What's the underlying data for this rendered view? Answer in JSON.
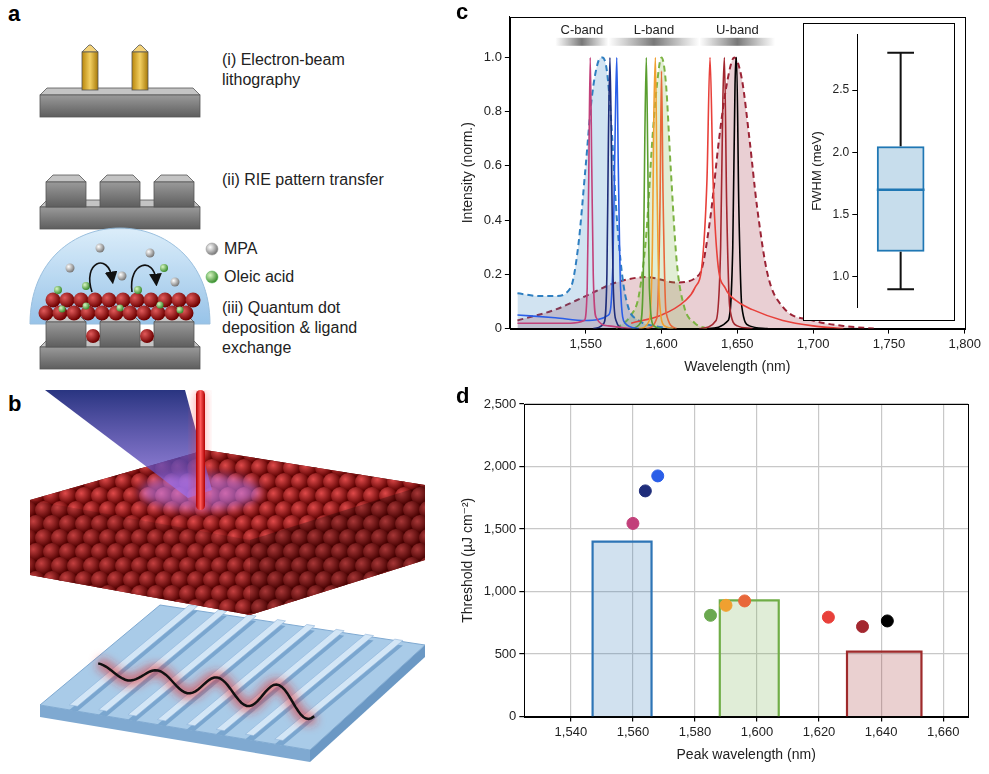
{
  "panel_labels": [
    "a",
    "b",
    "c",
    "d"
  ],
  "diagram": {
    "steps": [
      "(i) Electron-beam lithography",
      "(ii) RIE pattern transfer",
      "(iii) Quantum dot deposition & ligand exchange"
    ],
    "legend": [
      {
        "label": "MPA",
        "color": "#9e9e9e"
      },
      {
        "label": "Oleic acid",
        "color": "#5cb85c"
      }
    ]
  },
  "chart_data": [
    {
      "type": "line",
      "x_label": "Wavelength (nm)",
      "y_label": "Intensity (norm.)",
      "xlim": [
        1500,
        1800
      ],
      "xticks": [
        {
          "value": 1550,
          "label": "1,550"
        },
        {
          "value": 1600,
          "label": "1,600"
        },
        {
          "value": 1650,
          "label": "1,650"
        },
        {
          "value": 1700,
          "label": "1,700"
        },
        {
          "value": 1750,
          "label": "1,750"
        },
        {
          "value": 1800,
          "label": "1,800"
        }
      ],
      "ylim": [
        0,
        1.15
      ],
      "yticks": [
        0,
        0.2,
        0.4,
        0.6,
        0.8,
        {
          "value": 1,
          "label": "1.0"
        }
      ],
      "grid": false,
      "bands": [
        {
          "label": "C-band",
          "start": 1530,
          "end": 1565
        },
        {
          "label": "L-band",
          "start": 1565,
          "end": 1625
        },
        {
          "label": "U-band",
          "start": 1625,
          "end": 1675
        }
      ],
      "series": [
        {
          "color": "#2f7fc1",
          "line_style": "dashed",
          "x": [
            1505,
            1520,
            1530,
            1540,
            1545,
            1550,
            1554,
            1558,
            1561,
            1564,
            1567,
            1570,
            1574,
            1578,
            1585,
            1595,
            1610
          ],
          "values": [
            0.13,
            0.12,
            0.12,
            0.15,
            0.3,
            0.6,
            0.85,
            0.98,
            1.0,
            0.95,
            0.75,
            0.45,
            0.2,
            0.08,
            0.03,
            0.01,
            0
          ]
        },
        {
          "color": "#7cb342",
          "line_style": "dashed",
          "x": [
            1570,
            1580,
            1585,
            1590,
            1594,
            1597,
            1600,
            1603,
            1606,
            1610,
            1615,
            1622,
            1630
          ],
          "values": [
            0,
            0.05,
            0.12,
            0.35,
            0.7,
            0.9,
            1.0,
            0.9,
            0.6,
            0.25,
            0.08,
            0.02,
            0
          ]
        },
        {
          "color": "#9b2335",
          "line_style": "dashed",
          "x": [
            1505,
            1530,
            1550,
            1570,
            1590,
            1610,
            1625,
            1632,
            1638,
            1643,
            1648,
            1653,
            1658,
            1663,
            1670,
            1680,
            1700,
            1720,
            1740
          ],
          "values": [
            0.03,
            0.07,
            0.12,
            0.17,
            0.19,
            0.17,
            0.2,
            0.4,
            0.7,
            0.9,
            1.0,
            0.92,
            0.7,
            0.45,
            0.2,
            0.08,
            0.03,
            0.01,
            0
          ]
        },
        {
          "color": "#c2407a",
          "line_style": "solid",
          "x": [
            1505,
            1540,
            1549,
            1551,
            1552,
            1553,
            1554,
            1555,
            1557,
            1565,
            1580
          ],
          "values": [
            0.02,
            0.02,
            0.03,
            0.15,
            0.55,
            1.0,
            0.6,
            0.2,
            0.04,
            0.01,
            0
          ]
        },
        {
          "color": "#1f2d7a",
          "line_style": "solid",
          "x": [
            1555,
            1562,
            1564,
            1565,
            1566,
            1567,
            1568,
            1570,
            1575
          ],
          "values": [
            0,
            0.02,
            0.2,
            0.7,
            1.0,
            0.65,
            0.2,
            0.03,
            0
          ]
        },
        {
          "color": "#2a5ee8",
          "line_style": "solid",
          "x": [
            1505,
            1530,
            1550,
            1565,
            1568,
            1569.5,
            1570.5,
            1571.5,
            1573,
            1576,
            1585
          ],
          "values": [
            0.05,
            0.04,
            0.03,
            0.05,
            0.25,
            0.75,
            1.0,
            0.6,
            0.15,
            0.02,
            0
          ]
        },
        {
          "color": "#5a9e2f",
          "line_style": "solid",
          "x": [
            1580,
            1586,
            1588,
            1589,
            1590,
            1591,
            1592,
            1595,
            1600
          ],
          "values": [
            0,
            0.02,
            0.2,
            0.7,
            1.0,
            0.6,
            0.15,
            0.01,
            0
          ]
        },
        {
          "color": "#f0a030",
          "line_style": "solid",
          "x": [
            1585,
            1592,
            1594,
            1595,
            1596,
            1597,
            1598.5,
            1602,
            1608
          ],
          "values": [
            0,
            0.03,
            0.3,
            0.8,
            1.0,
            0.55,
            0.12,
            0.01,
            0
          ]
        },
        {
          "color": "#e8673a",
          "line_style": "solid",
          "x": [
            1590,
            1597,
            1599,
            1600,
            1601,
            1603,
            1610
          ],
          "values": [
            0,
            0.04,
            0.45,
            0.95,
            0.5,
            0.06,
            0
          ]
        },
        {
          "color": "#e8403a",
          "line_style": "solid",
          "x": [
            1580,
            1600,
            1615,
            1622,
            1627,
            1630,
            1632,
            1634,
            1637,
            1642,
            1650,
            1660,
            1680,
            1700,
            1720
          ],
          "values": [
            0.02,
            0.05,
            0.1,
            0.15,
            0.25,
            0.55,
            1.0,
            0.55,
            0.25,
            0.15,
            0.1,
            0.07,
            0.03,
            0.01,
            0
          ]
        },
        {
          "color": "#a3272f",
          "line_style": "solid",
          "x": [
            1625,
            1636,
            1639,
            1640.5,
            1641.5,
            1643,
            1645,
            1650,
            1660
          ],
          "values": [
            0,
            0.03,
            0.3,
            0.85,
            1.0,
            0.45,
            0.08,
            0.01,
            0
          ]
        },
        {
          "color": "#000000",
          "line_style": "solid",
          "x": [
            1630,
            1644,
            1647,
            1648.5,
            1649.5,
            1651,
            1653,
            1658,
            1670
          ],
          "values": [
            0,
            0.03,
            0.3,
            0.9,
            1.0,
            0.45,
            0.08,
            0.01,
            0
          ]
        }
      ]
    },
    {
      "type": "box",
      "y_label": "FWHM (meV)",
      "ylim": [
        0.75,
        2.95
      ],
      "yticks": [
        {
          "value": 1,
          "label": "1.0"
        },
        1.5,
        {
          "value": 2,
          "label": "2.0"
        },
        2.5
      ],
      "box": {
        "min": 0.9,
        "q1": 1.2,
        "median": 1.7,
        "q3": 2.05,
        "max": 2.8
      },
      "color": "#1f77b4",
      "tick_labels": "y",
      "grid": false
    },
    {
      "type": "scatter",
      "x_label": "Peak wavelength (nm)",
      "y_label": "Threshold (µJ cm⁻²)",
      "xlim": [
        1525,
        1668
      ],
      "xticks": [
        {
          "value": 1540,
          "label": "1,540"
        },
        {
          "value": 1560,
          "label": "1,560"
        },
        {
          "value": 1580,
          "label": "1,580"
        },
        {
          "value": 1600,
          "label": "1,600"
        },
        {
          "value": 1620,
          "label": "1,620"
        },
        {
          "value": 1640,
          "label": "1,640"
        },
        {
          "value": 1660,
          "label": "1,660"
        }
      ],
      "ylim": [
        0,
        2500
      ],
      "yticks": [
        0,
        500,
        {
          "value": 1000,
          "label": "1,000"
        },
        {
          "value": 1500,
          "label": "1,500"
        },
        {
          "value": 2000,
          "label": "2,000"
        },
        {
          "value": 2500,
          "label": "2,500"
        }
      ],
      "grid": true,
      "series": [
        {
          "x": [
            1560,
            1564,
            1568,
            1585,
            1590,
            1596,
            1623,
            1634,
            1642
          ],
          "values": [
            1545,
            1805,
            1925,
            810,
            890,
            925,
            795,
            720,
            765
          ],
          "colors": [
            "#c2407a",
            "#1f2d7a",
            "#2a5ee8",
            "#6aa84f",
            "#f0a030",
            "#e8673a",
            "#e8403a",
            "#a3272f",
            "#000000"
          ],
          "marker": "circle"
        }
      ],
      "bars": {
        "x_start": [
          1547,
          1588,
          1629
        ],
        "x_end": [
          1566,
          1607,
          1653
        ],
        "values": [
          1400,
          930,
          520
        ],
        "colors": [
          "#2e75b6",
          "#70ad47",
          "#9e2a2b"
        ]
      }
    }
  ]
}
